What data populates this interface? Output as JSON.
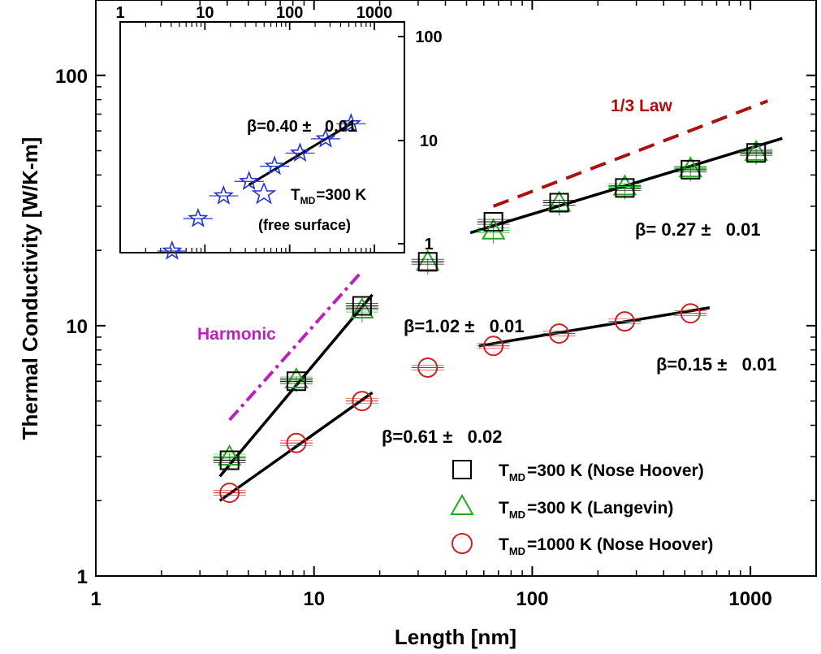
{
  "chart_data": [
    {
      "type": "scatter",
      "xscale": "log",
      "yscale": "log",
      "xlim": [
        1,
        2000
      ],
      "ylim": [
        1,
        200
      ],
      "xlabel": "Length [nm]",
      "ylabel": "Thermal Conductivity [W/K-m]",
      "x_ticks": [
        1,
        10,
        100,
        1000
      ],
      "x_tick_labels": [
        "1",
        "10",
        "100",
        "1000"
      ],
      "y_ticks": [
        1,
        10,
        100
      ],
      "y_tick_labels": [
        "1",
        "10",
        "100"
      ],
      "grid": false,
      "legend_position": "bottom-right",
      "series": [
        {
          "name": "=300 K (Nose Hoover)",
          "legend_sub": "MD",
          "marker": "square",
          "color": "#000000",
          "x": [
            4.1,
            8.3,
            16.6,
            33.2,
            66.4,
            132.8,
            265.6,
            531.2,
            1062.4
          ],
          "y": [
            2.9,
            6.0,
            12.0,
            18.0,
            26.0,
            31.0,
            35.5,
            42.0,
            49.0
          ]
        },
        {
          "name": "=300 K (Langevin)",
          "legend_sub": "MD",
          "marker": "triangle",
          "color": "#22aa22",
          "x": [
            4.1,
            8.3,
            16.6,
            33.2,
            66.4,
            132.8,
            265.6,
            531.2,
            1062.4
          ],
          "y": [
            3.0,
            6.1,
            11.6,
            18.0,
            24.0,
            31.0,
            36.0,
            42.5,
            49.5
          ]
        },
        {
          "name": "=1000 K (Nose Hoover)",
          "legend_sub": "MD",
          "marker": "circle",
          "color": "#cc2222",
          "x": [
            4.1,
            8.3,
            16.6,
            33.2,
            66.4,
            132.8,
            265.6,
            531.2
          ],
          "y": [
            2.15,
            3.4,
            5.0,
            6.8,
            8.3,
            9.3,
            10.4,
            11.2
          ]
        }
      ],
      "fits": [
        {
          "label": "β=1.02 ±   0.01",
          "x": [
            3.7,
            18.5
          ],
          "y": [
            2.5,
            13.3
          ],
          "color": "#000000"
        },
        {
          "label": "β=0.61 ±   0.02",
          "x": [
            3.7,
            18.5
          ],
          "y": [
            2.0,
            5.4
          ],
          "color": "#000000"
        },
        {
          "label": "β= 0.27 ±   0.01",
          "x": [
            52,
            1400
          ],
          "y": [
            23.5,
            56
          ],
          "color": "#000000"
        },
        {
          "label": "β=0.15 ±   0.01",
          "x": [
            57,
            650
          ],
          "y": [
            8.3,
            11.8
          ],
          "color": "#000000"
        }
      ],
      "reference_lines": [
        {
          "label": "Harmonic",
          "x": [
            4.1,
            16.6
          ],
          "y": [
            4.2,
            16.5
          ],
          "color": "#bb22bb",
          "style": "dash-dot"
        },
        {
          "label": "1/3 Law",
          "x": [
            66.4,
            1200
          ],
          "y": [
            30,
            79
          ],
          "color": "#aa1111",
          "style": "dashed"
        }
      ],
      "inset": {
        "type": "scatter",
        "xscale": "log",
        "yscale": "log",
        "xlim": [
          1,
          1000
        ],
        "ylim": [
          0.3,
          100
        ],
        "x_ticks": [
          1,
          10,
          100,
          1000
        ],
        "x_tick_labels": [
          "1",
          "10",
          "100",
          "1000"
        ],
        "y_ticks": [
          1,
          10,
          100
        ],
        "y_tick_labels": [
          "1",
          "10",
          "100"
        ],
        "series": [
          {
            "name": "=300 K",
            "legend_sub": "MD",
            "legend_note": "(free surface)",
            "marker": "star",
            "color": "#2233cc",
            "x": [
              4.1,
              8.3,
              16.6,
              33.2,
              66.4,
              132.8,
              265.6,
              531.2
            ],
            "y": [
              0.85,
              1.75,
              2.9,
              4.0,
              5.6,
              7.5,
              10.3,
              14.4
            ]
          }
        ],
        "fit": {
          "label": "β=0.40 ±   0.01",
          "x": [
            33,
            540
          ],
          "y": [
            3.7,
            14.5
          ],
          "color": "#000000"
        }
      }
    }
  ]
}
